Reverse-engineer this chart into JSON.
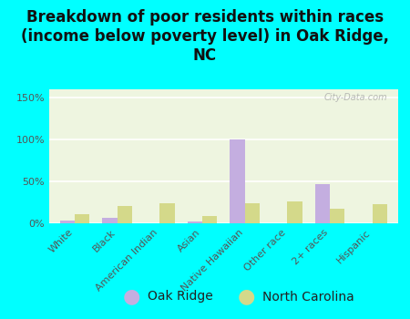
{
  "title": "Breakdown of poor residents within races\n(income below poverty level) in Oak Ridge,\nNC",
  "categories": [
    "White",
    "Black",
    "American Indian",
    "Asian",
    "Native Hawaiian",
    "Other race",
    "2+ races",
    "Hispanic"
  ],
  "oak_ridge": [
    3,
    7,
    0,
    2,
    100,
    0,
    47,
    0
  ],
  "north_carolina": [
    11,
    21,
    24,
    9,
    24,
    26,
    17,
    23
  ],
  "oak_ridge_color": "#c4aee0",
  "north_carolina_color": "#d4d98a",
  "background_color": "#00ffff",
  "plot_bg_color": "#eef5e0",
  "ylim": [
    0,
    160
  ],
  "yticks": [
    0,
    50,
    100,
    150
  ],
  "ytick_labels": [
    "0%",
    "50%",
    "100%",
    "150%"
  ],
  "bar_width": 0.35,
  "legend_labels": [
    "Oak Ridge",
    "North Carolina"
  ],
  "watermark": "City-Data.com",
  "title_fontsize": 12,
  "tick_fontsize": 8,
  "legend_fontsize": 10
}
